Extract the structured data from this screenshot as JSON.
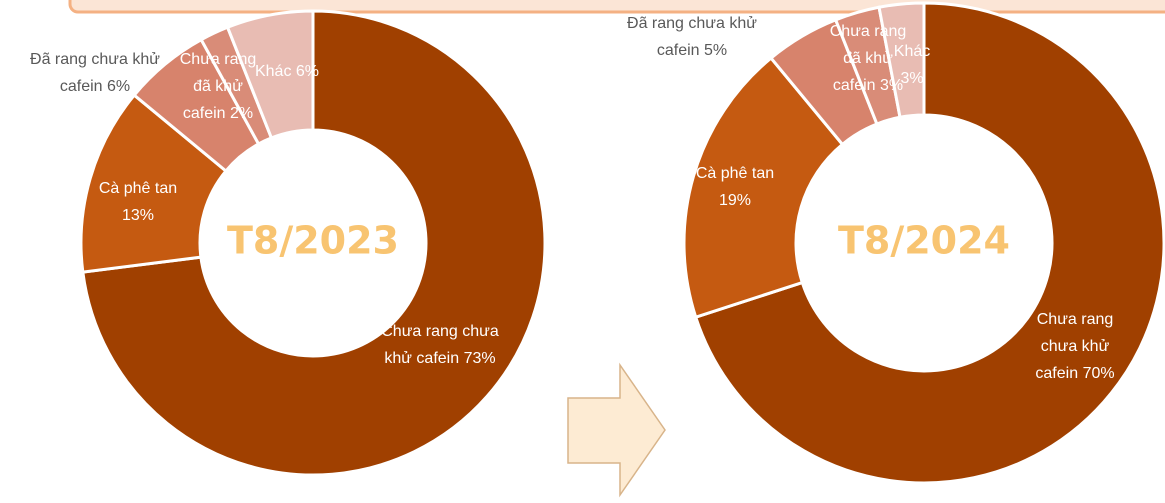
{
  "chart_data": [
    {
      "type": "donut",
      "title": "T8/2023",
      "categories": [
        "Chưa rang chưa khử cafein",
        "Cà phê tan",
        "Đã rang chưa khử cafein",
        "Chưa rang đã khử cafein",
        "Khác"
      ],
      "values": [
        73,
        13,
        6,
        2,
        6
      ],
      "value_labels": [
        "73%",
        "13%",
        "6%",
        "2%",
        "6%"
      ],
      "colors": [
        "#a04000",
        "#c55a11",
        "#d7836c",
        "#d98c78",
        "#e8bcb3"
      ]
    },
    {
      "type": "donut",
      "title": "T8/2024",
      "categories": [
        "Chưa rang chưa khử cafein",
        "Cà phê tan",
        "Đã rang chưa khử cafein",
        "Chưa rang đã khử cafein",
        "Khác"
      ],
      "values": [
        70,
        19,
        5,
        3,
        3
      ],
      "value_labels": [
        "70%",
        "19%",
        "5%",
        "3%",
        "3%"
      ],
      "colors": [
        "#a04000",
        "#c55a11",
        "#d7836c",
        "#d98c78",
        "#e8bcb3"
      ]
    }
  ]
}
